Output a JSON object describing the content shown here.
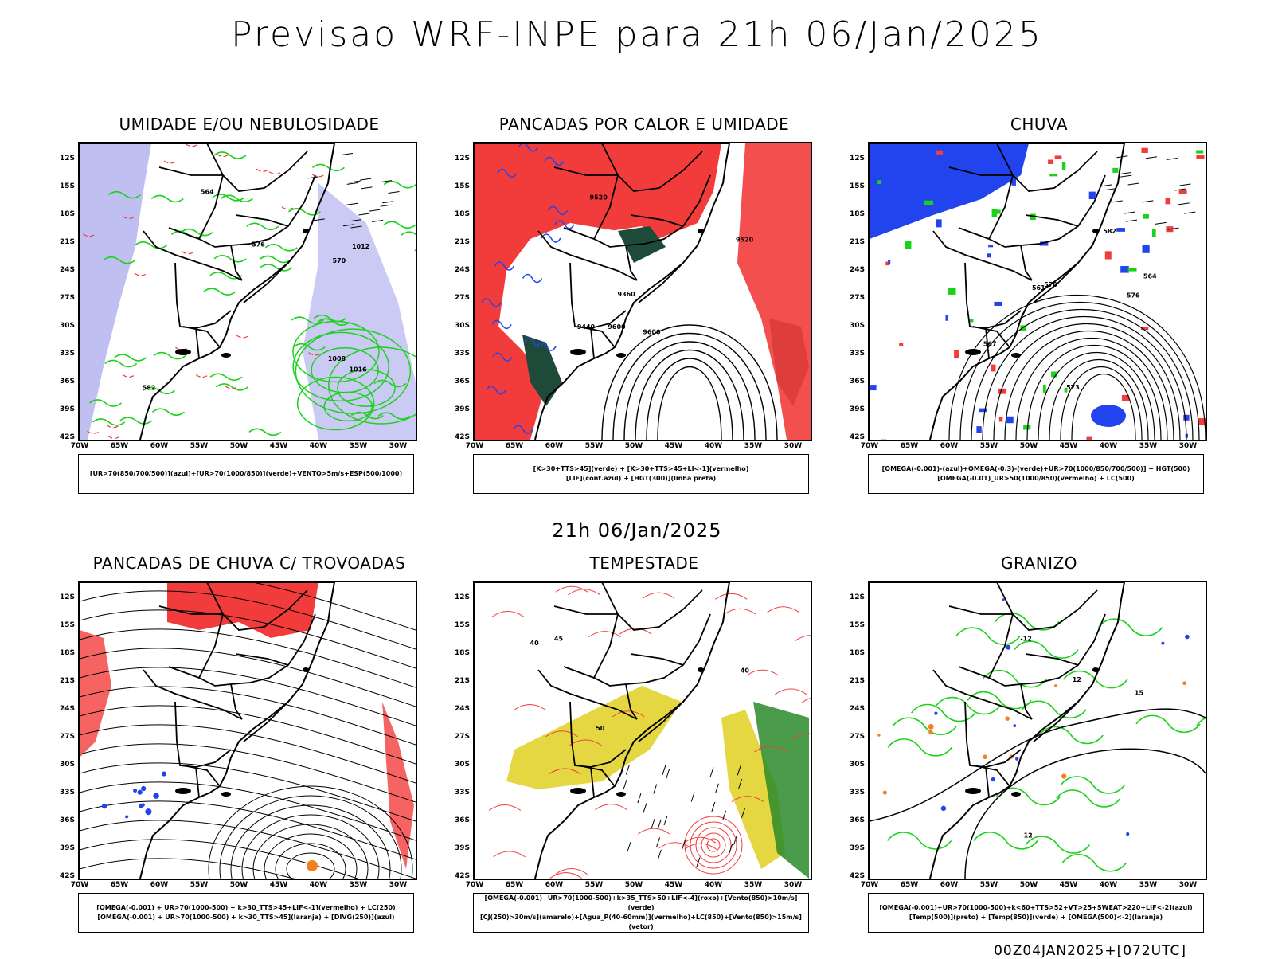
{
  "main_title": "Previsao WRF-INPE  para 21h 06/Jan/2025",
  "mid_title": "21h 06/Jan/2025",
  "footer": "00Z04JAN2025+[072UTC]",
  "lat_labels": [
    "12S",
    "15S",
    "18S",
    "21S",
    "24S",
    "27S",
    "30S",
    "33S",
    "36S",
    "39S",
    "42S"
  ],
  "lon_labels": [
    "70W",
    "65W",
    "60W",
    "55W",
    "50W",
    "45W",
    "40W",
    "35W",
    "30W"
  ],
  "colors": {
    "red": "#f23c3c",
    "green": "#1ad21a",
    "blue": "#2244ee",
    "lavender": "#b4b4f0",
    "yellow": "#e0d020",
    "darkgreen": "#1e4a3a",
    "orange": "#f08020",
    "purple": "#a000e0"
  },
  "panels": [
    {
      "title": "UMIDADE E/OU NEBULOSIDADE",
      "legend": [
        "[UR>70(850/700/500)](azul)+[UR>70(1000/850)](verde)+VENTO>5m/s+ESP(500/1000)"
      ],
      "contour_labels": [
        "1008",
        "1012",
        "1016",
        "576",
        "582",
        "564",
        "570"
      ]
    },
    {
      "title": "PANCADAS POR CALOR E UMIDADE",
      "legend": [
        "[K>30+TTS>45](verde) + [K>30+TTS>45+LI<-1](vermelho)",
        "[LIF](cont.azul) + [HGT(300)](linha preta)"
      ],
      "contour_labels": [
        "9600",
        "9520",
        "9440",
        "9360",
        "9600",
        "9520"
      ]
    },
    {
      "title": "CHUVA",
      "legend": [
        "[OMEGA(-0.001)-(azul)+OMEGA(-0.3)-(verde)+UR>70(1000/850/700/500)] + HGT(500)",
        "[OMEGA(-0.01)_UR>50(1000/850)(vermelho) + LC(500)"
      ],
      "contour_labels": [
        "576",
        "573",
        "570",
        "567",
        "564",
        "561",
        "582"
      ]
    },
    {
      "title": "PANCADAS DE CHUVA C/ TROVOADAS",
      "legend": [
        "[OMEGA(-0.001) + UR>70(1000-500) + k>30_TTS>45+LIF<-1](vermelho) + LC(250)",
        "[OMEGA(-0.001) + UR>70(1000-500) + k>30_TTS>45](laranja) + [DIVG(250)](azul)"
      ],
      "contour_labels": []
    },
    {
      "title": "TEMPESTADE",
      "legend": [
        "[OMEGA(-0.001)+UR>70(1000-500)+k>35_TTS>50+LIF<-4](roxo)+[Vento(850)>10m/s](verde)",
        "[CJ(250)>30m/s](amarelo)+[Agua_P(40-60mm)](vermelho)+LC(850)+[Vento(850)>15m/s](vetor)"
      ],
      "contour_labels": [
        "40",
        "50",
        "45",
        "40"
      ]
    },
    {
      "title": "GRANIZO",
      "legend": [
        "[OMEGA(-0.001)+UR>70(1000-500)+k<60+TTS>52+VT>25+SWEAT>220+LIF<-2](azul)",
        "[Temp(500)](preto) + [Temp(850)](verde) + [OMEGA(500)<-2](laranja)"
      ],
      "contour_labels": [
        "-12",
        "12",
        "-12",
        "15"
      ]
    }
  ]
}
